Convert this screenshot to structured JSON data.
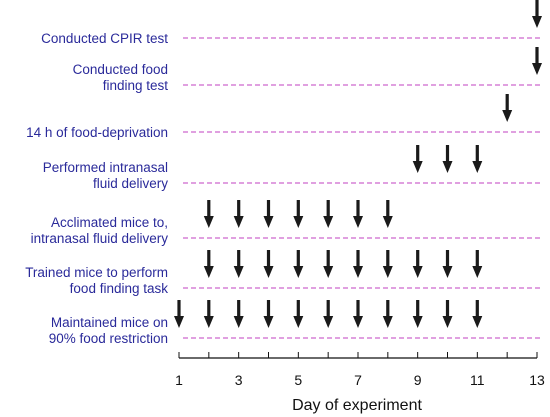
{
  "chart_data": {
    "type": "timeline",
    "xlabel": "Day of experiment",
    "x_range": [
      1,
      13
    ],
    "x_tick_labels": [
      "1",
      "3",
      "5",
      "7",
      "9",
      "11",
      "13"
    ],
    "x_tick_values": [
      1,
      3,
      5,
      7,
      9,
      11,
      13
    ],
    "line_color": "#c040c0",
    "label_color": "#2a2a9a",
    "arrow_color": "#1a1a1a",
    "rows": [
      {
        "label_lines": [
          "Conducted CPIR test"
        ],
        "days": [
          13
        ]
      },
      {
        "label_lines": [
          "Conducted food",
          "finding test"
        ],
        "days": [
          13
        ]
      },
      {
        "label_lines": [
          "14 h of food-deprivation"
        ],
        "days": [
          12
        ]
      },
      {
        "label_lines": [
          "Performed intranasal",
          "fluid delivery"
        ],
        "days": [
          9,
          10,
          11
        ]
      },
      {
        "label_lines": [
          "Acclimated mice to,",
          "intranasal fluid delivery"
        ],
        "days": [
          2,
          3,
          4,
          5,
          6,
          7,
          8
        ]
      },
      {
        "label_lines": [
          "Trained mice to perform",
          "food finding task"
        ],
        "days": [
          2,
          3,
          4,
          5,
          6,
          7,
          8,
          9,
          10,
          11
        ]
      },
      {
        "label_lines": [
          "Maintained mice on",
          "90% food restriction"
        ],
        "days": [
          1,
          2,
          3,
          4,
          5,
          6,
          7,
          8,
          9,
          10,
          11
        ]
      }
    ]
  }
}
